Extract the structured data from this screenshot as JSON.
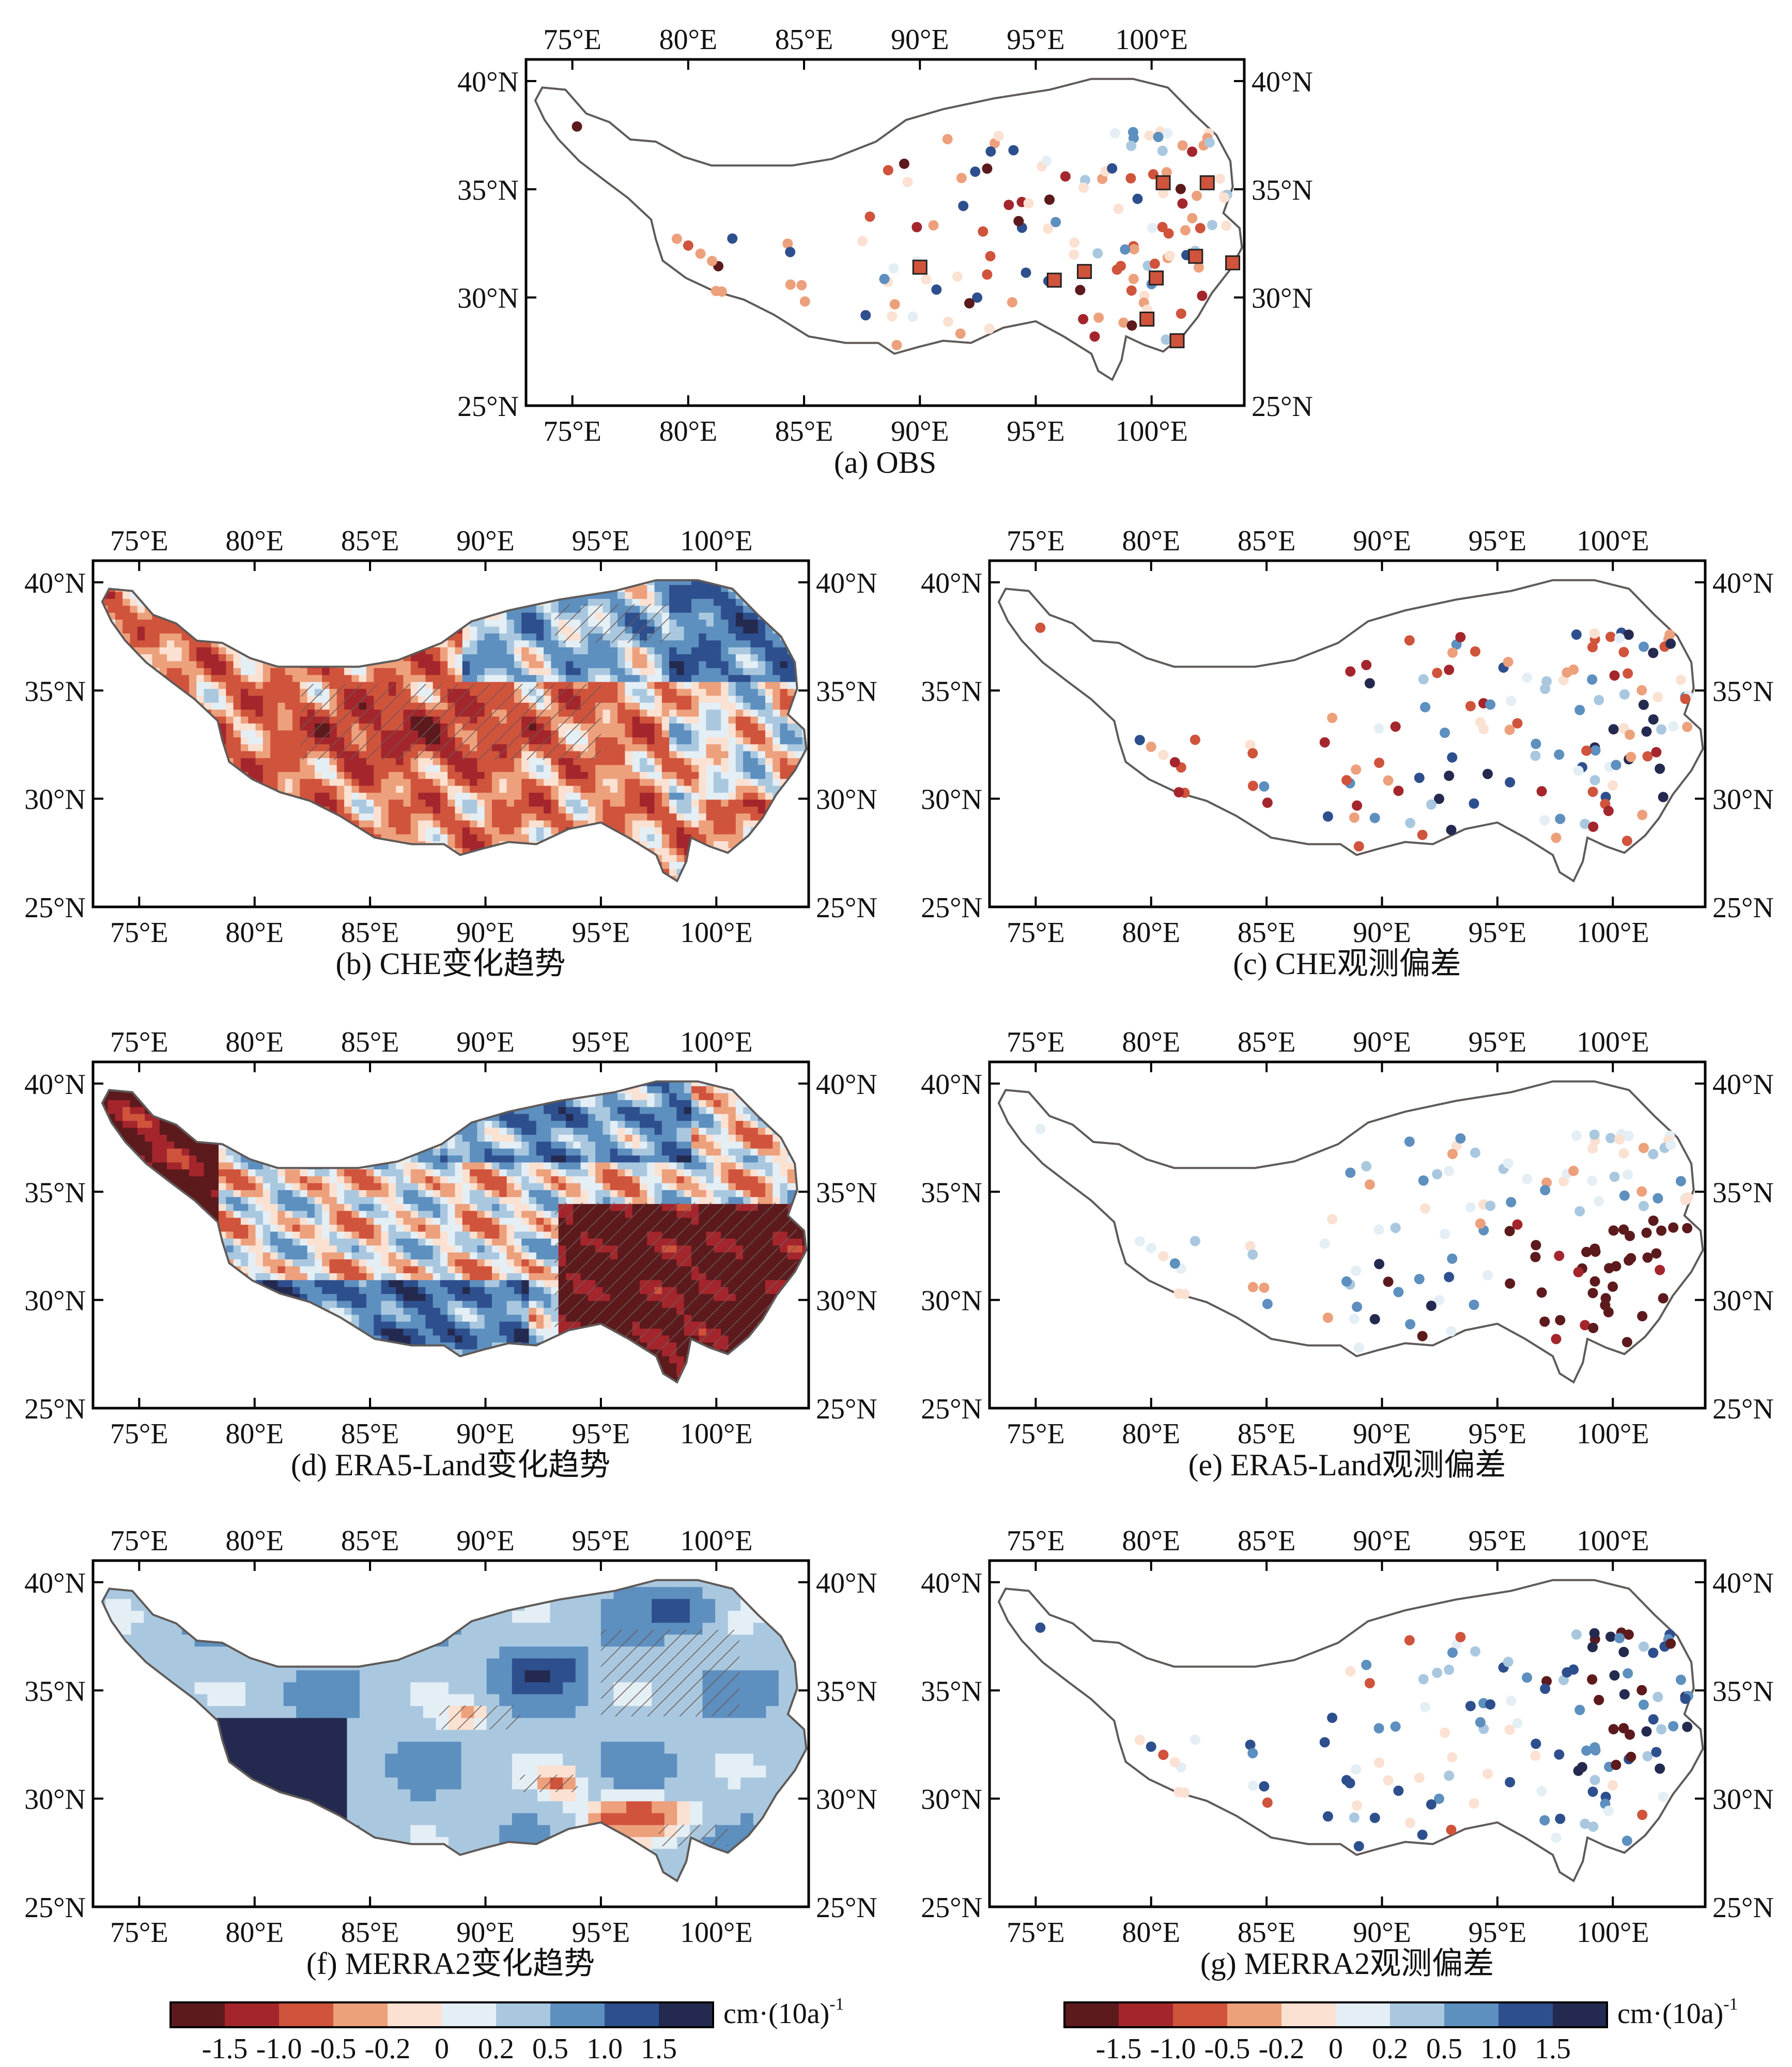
{
  "figure": {
    "lon_ticks": [
      "75°E",
      "80°E",
      "85°E",
      "90°E",
      "95°E",
      "100°E"
    ],
    "lat_ticks": [
      "25°N",
      "30°N",
      "35°N",
      "40°N"
    ],
    "lon_values": [
      75,
      80,
      85,
      90,
      95,
      100
    ],
    "lat_values": [
      25,
      30,
      35,
      40
    ],
    "extent": {
      "lon": [
        73,
        104
      ],
      "lat": [
        25,
        41
      ]
    },
    "panels": [
      {
        "id": "a",
        "caption": "(a) OBS",
        "kind": "points",
        "palette": "obs"
      },
      {
        "id": "b",
        "caption": "(b) CHE变化趋势",
        "kind": "field",
        "style": "che"
      },
      {
        "id": "c",
        "caption": "(c) CHE观测偏差",
        "kind": "points",
        "palette": "che"
      },
      {
        "id": "d",
        "caption": "(d) ERA5-Land变化趋势",
        "kind": "field",
        "style": "era"
      },
      {
        "id": "e",
        "caption": "(e) ERA5-Land观测偏差",
        "kind": "points",
        "palette": "era"
      },
      {
        "id": "f",
        "caption": "(f) MERRA2变化趋势",
        "kind": "field",
        "style": "merra"
      },
      {
        "id": "g",
        "caption": "(g) MERRA2观测偏差",
        "kind": "points",
        "palette": "merra"
      }
    ]
  },
  "colorbar": {
    "unit": "cm·(10a)",
    "unit_superscript": "-1",
    "tick_labels": [
      "-1.5",
      "-1.0",
      "-0.5",
      "-0.2",
      "0",
      "0.2",
      "0.5",
      "1.0",
      "1.5"
    ],
    "colors": [
      "#5c1a1d",
      "#a4262c",
      "#d0533c",
      "#eda07c",
      "#fbe1d2",
      "#e4eef5",
      "#a9c8df",
      "#5d8fbf",
      "#2e4f8e",
      "#242a4f"
    ]
  },
  "colors": {
    "outline": "#5f5a58",
    "frame": "#000000",
    "hatch": "#6b5a55"
  }
}
